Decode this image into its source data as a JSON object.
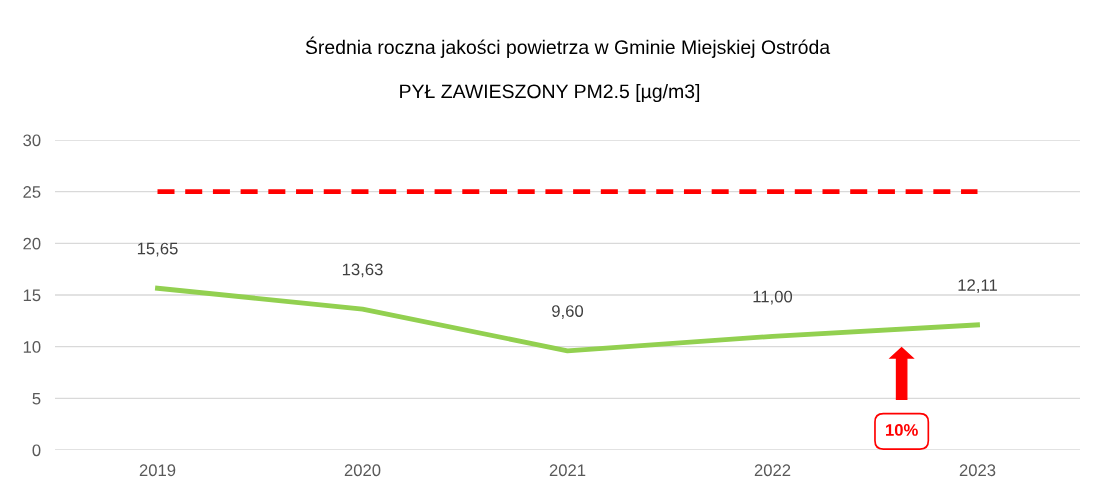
{
  "chart_data": {
    "type": "line",
    "title": "Średnia roczna jakości powietrza w Gminie Miejskiej Ostróda",
    "subtitle": "PYŁ ZAWIESZONY PM2.5 [µg/m3]",
    "categories": [
      "2019",
      "2020",
      "2021",
      "2022",
      "2023"
    ],
    "series": [
      {
        "color": "#92d050",
        "values": [
          15.65,
          13.63,
          9.6,
          11.0,
          12.11
        ],
        "value_labels": [
          "15,65",
          "13,63",
          "9,60",
          "11,00",
          "12,11"
        ]
      }
    ],
    "ylim": [
      0,
      30
    ],
    "yticks": [
      0,
      5,
      10,
      15,
      20,
      25,
      30
    ],
    "grid": "y",
    "legend": false,
    "marker": "none",
    "line_style": "solid",
    "ref_lines": [
      {
        "axis": "y",
        "value": 25,
        "color": "#ff0000",
        "line_style": "dashed"
      }
    ],
    "annotations": [
      "10%"
    ]
  }
}
